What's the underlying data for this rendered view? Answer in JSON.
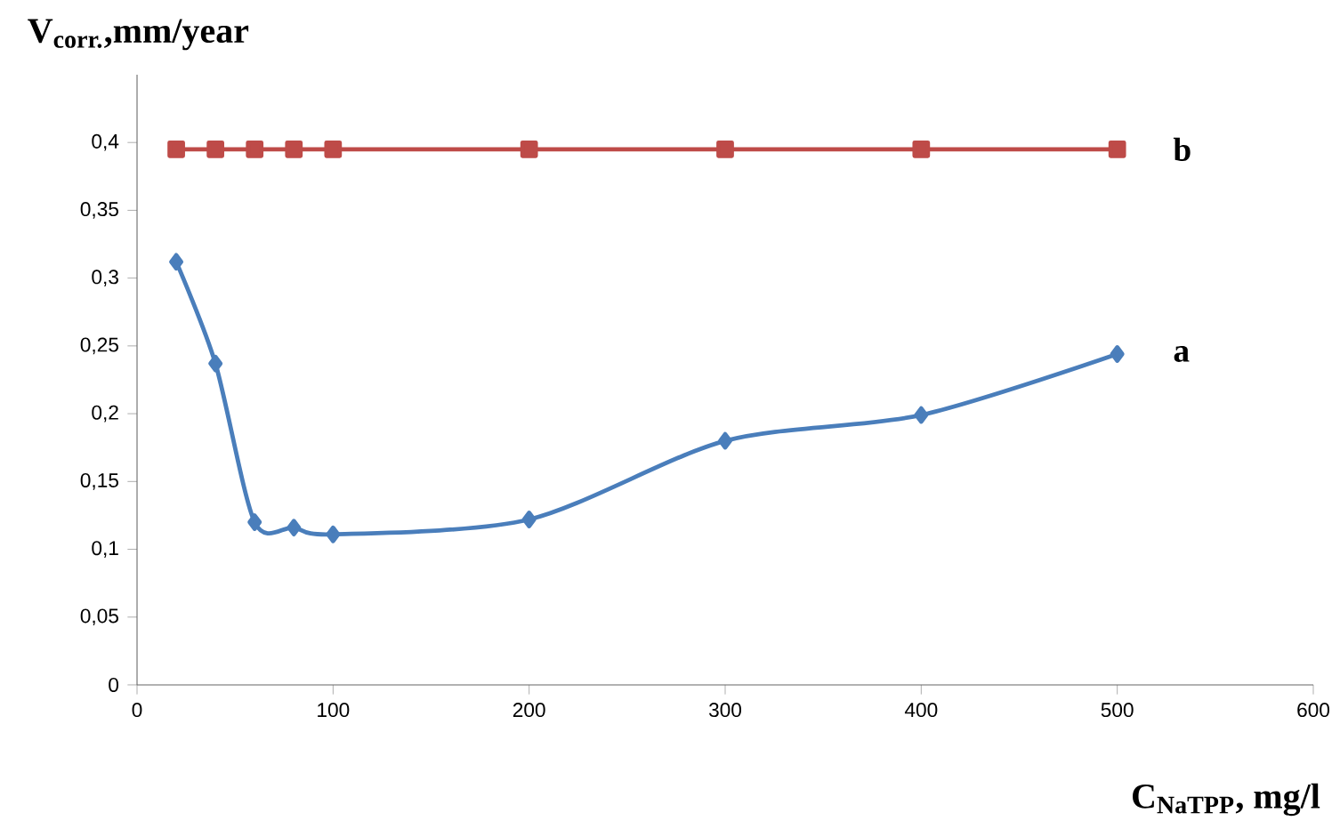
{
  "chart_data": {
    "type": "line",
    "xlabel": "C$_{NaTPP}$, mg/l",
    "ylabel": "V$_{corr.}$,mm/year",
    "x": [
      20,
      40,
      60,
      80,
      100,
      200,
      300,
      400,
      500
    ],
    "series": [
      {
        "name": "a",
        "color": "#4a7ebb",
        "marker": "diamond",
        "values": [
          0.312,
          0.237,
          0.12,
          0.116,
          0.111,
          0.122,
          0.18,
          0.199,
          0.244
        ]
      },
      {
        "name": "b",
        "color": "#be4b48",
        "marker": "square",
        "values": [
          0.395,
          0.395,
          0.395,
          0.395,
          0.395,
          0.395,
          0.395,
          0.395,
          0.395
        ]
      }
    ],
    "xlim": [
      0,
      600
    ],
    "xticks": [
      0,
      100,
      200,
      300,
      400,
      500,
      600
    ],
    "ylim": [
      0,
      0.45
    ],
    "yticks": [
      0,
      {
        "value": 0.05,
        "label": "0,05"
      },
      {
        "value": 0.1,
        "label": "0,1"
      },
      {
        "value": 0.15,
        "label": "0,15"
      },
      {
        "value": 0.2,
        "label": "0,2"
      },
      {
        "value": 0.25,
        "label": "0,25"
      },
      {
        "value": 0.3,
        "label": "0,3"
      },
      {
        "value": 0.35,
        "label": "0,35"
      },
      {
        "value": 0.4,
        "label": "0,4"
      }
    ],
    "grid": false,
    "legend": false
  }
}
